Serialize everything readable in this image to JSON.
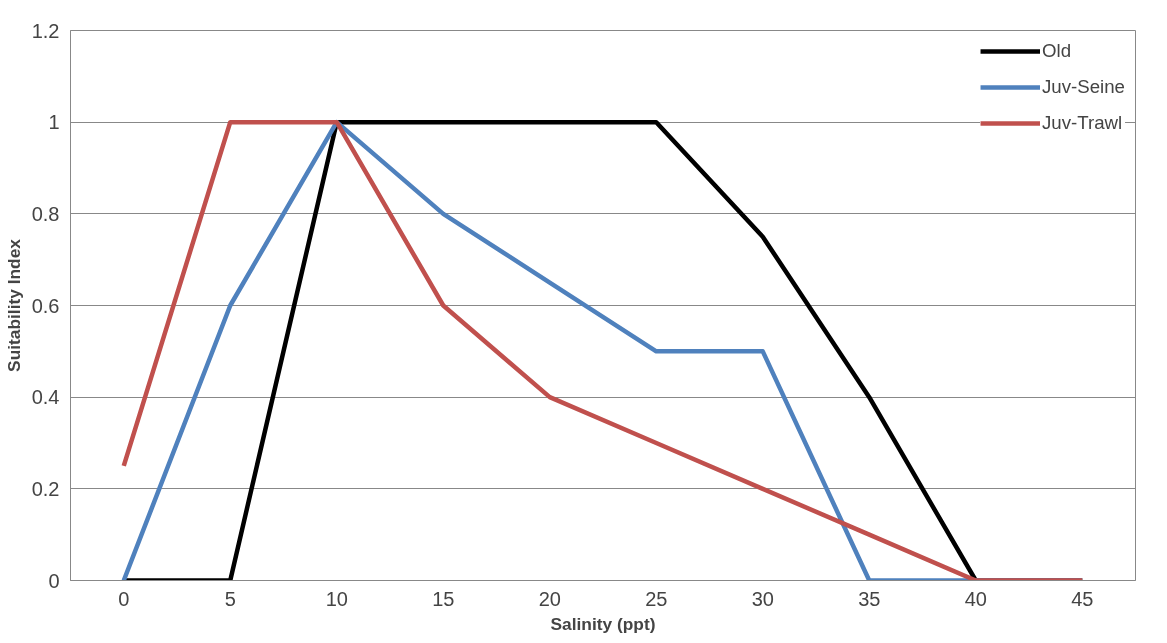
{
  "chart_data": {
    "type": "line",
    "xlabel": "Salinity (ppt)",
    "ylabel": "Suitability Index",
    "x": [
      0,
      5,
      10,
      15,
      20,
      25,
      30,
      35,
      40,
      45
    ],
    "series": [
      {
        "name": "Old",
        "color": "#000000",
        "values": [
          0,
          0,
          1,
          1,
          1,
          1,
          0.75,
          0.4,
          0,
          0
        ]
      },
      {
        "name": "Juv-Seine",
        "color": "#4f81bd",
        "values": [
          0,
          0.6,
          1,
          0.8,
          0.65,
          0.5,
          0.5,
          0,
          0,
          0
        ]
      },
      {
        "name": "Juv-Trawl",
        "color": "#c0504d",
        "values": [
          0.25,
          1,
          1,
          0.6,
          0.4,
          0.3,
          0.2,
          0.1,
          0,
          0
        ]
      }
    ],
    "xlim": [
      -2.5,
      47.5
    ],
    "xticks": [
      0,
      5,
      10,
      15,
      20,
      25,
      30,
      35,
      40,
      45
    ],
    "ylim": [
      0,
      1.2
    ],
    "yticks": [
      0,
      0.2,
      0.4,
      0.6,
      0.8,
      1,
      1.2
    ],
    "grid": "y",
    "legend": "top right",
    "marker": "none",
    "line_style": "solid"
  }
}
